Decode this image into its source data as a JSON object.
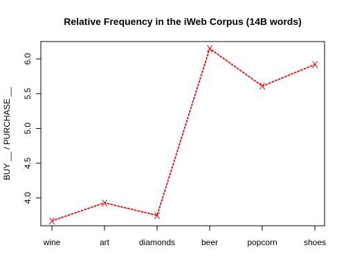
{
  "chart_data": {
    "type": "line",
    "title": "Relative Frequency in the iWeb Corpus (14B words)",
    "xlabel": "",
    "ylabel": "BUY __ / PURCHASE __",
    "categories": [
      "wine",
      "art",
      "diamonds",
      "beer",
      "popcorn",
      "shoes"
    ],
    "series": [
      {
        "values": [
          3.67,
          3.93,
          3.75,
          6.15,
          5.61,
          5.92
        ],
        "marker": "X",
        "line_style": "dotted",
        "color": "#e41a1c"
      }
    ],
    "ylim": [
      3.6,
      6.25
    ],
    "yticks": [
      "4.0",
      "4.5",
      "5.0",
      "5.5",
      "6.0"
    ],
    "grid": false,
    "legend": "none"
  }
}
